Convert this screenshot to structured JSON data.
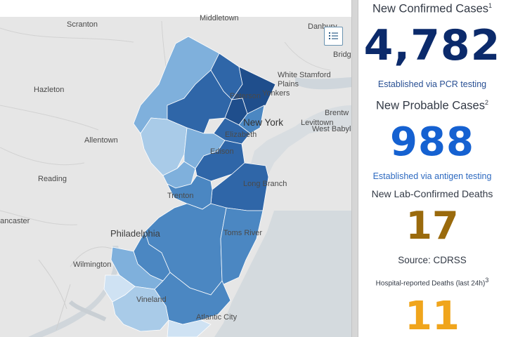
{
  "map": {
    "places": [
      {
        "name": "Middletown"
      },
      {
        "name": "Danbury"
      },
      {
        "name": "Scranton"
      },
      {
        "name": "Bridg"
      },
      {
        "name": "Hazleton"
      },
      {
        "name": "White Plains"
      },
      {
        "name": "Stamford"
      },
      {
        "name": "Paterson"
      },
      {
        "name": "Yonkers"
      },
      {
        "name": "Brentw"
      },
      {
        "name": "New York"
      },
      {
        "name": "Levittown"
      },
      {
        "name": "West Babyl"
      },
      {
        "name": "Allentown"
      },
      {
        "name": "Elizabeth"
      },
      {
        "name": "Edison"
      },
      {
        "name": "Reading"
      },
      {
        "name": "Long Branch"
      },
      {
        "name": "Trenton"
      },
      {
        "name": "Lancaster"
      },
      {
        "name": "Philadelphia"
      },
      {
        "name": "Toms River"
      },
      {
        "name": "Wilmington"
      },
      {
        "name": "Vineland"
      },
      {
        "name": "Atlantic City"
      }
    ],
    "legend_icon": "legend-list-icon",
    "colors": {
      "land": "#e6e6e6",
      "water": "#cfd6dc",
      "county_darkest": "#1f4e8c",
      "county_dark": "#2f66a8",
      "county_mid": "#4b87c2",
      "county_light": "#7fb0dc",
      "county_lighter": "#a9cbe8",
      "county_lightest": "#cfe2f3"
    }
  },
  "stats": {
    "confirmed": {
      "title": "New Confirmed Cases",
      "sup": "1",
      "value": "4,782",
      "note": "Established via PCR testing",
      "color": "#0b2a6b",
      "note_color": "#284f93"
    },
    "probable": {
      "title": "New Probable Cases",
      "sup": "2",
      "value": "988",
      "note": "Established via antigen testing",
      "color": "#1561d1",
      "note_color": "#2e6ac0"
    },
    "deaths": {
      "title": "New Lab-Confirmed Deaths",
      "value": "17",
      "note": "Source: CDRSS",
      "color": "#9a6a0c",
      "note_color": "#333a46"
    },
    "hospital_deaths": {
      "title": "Hospital-reported Deaths (last 24h)",
      "sup": "3",
      "value": "11",
      "color": "#f0a51c"
    }
  }
}
